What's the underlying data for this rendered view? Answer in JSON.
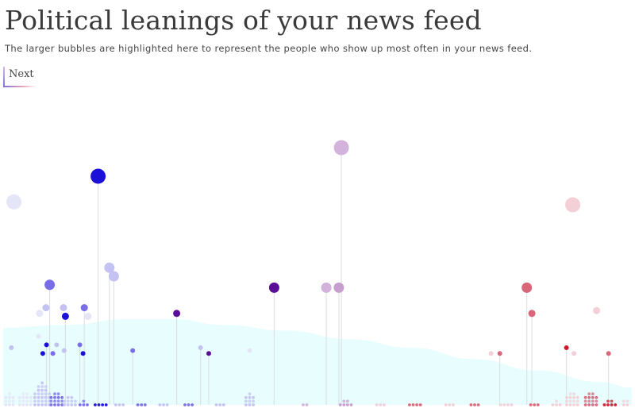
{
  "header": {
    "title": "Political leanings of your news feed",
    "subtitle": "The larger bubbles are highlighted here to represent the people who show up most often in your news feed.",
    "next_label": "Next"
  },
  "colors": {
    "strong_left": "#1a10d8",
    "left": "#7a6ee8",
    "light_left": "#c4c2f2",
    "very_light_left": "#e4e6f8",
    "purple": "#5a0d96",
    "light_purple": "#d3b3db",
    "mid_purple": "#c79fcf",
    "pink": "#d9677a",
    "light_pink": "#f3cfd6",
    "red": "#cc1b2c",
    "stem": "#dcdde0",
    "baseline_area": "#e8fdfd"
  },
  "chart_data": {
    "type": "scatter",
    "title": "Political leanings of your news feed",
    "xlabel": "",
    "ylabel": "",
    "xlim": [
      0,
      100
    ],
    "ylim": [
      0,
      100
    ],
    "x_meaning": "political leaning (left = blue, right = red)",
    "y_meaning": "how often the person shows up in your news feed",
    "background_area": [
      {
        "x": 0,
        "y": 27
      },
      {
        "x": 10,
        "y": 28
      },
      {
        "x": 20,
        "y": 30
      },
      {
        "x": 27,
        "y": 30
      },
      {
        "x": 35,
        "y": 28
      },
      {
        "x": 45,
        "y": 26
      },
      {
        "x": 55,
        "y": 23
      },
      {
        "x": 65,
        "y": 20
      },
      {
        "x": 75,
        "y": 16
      },
      {
        "x": 85,
        "y": 12
      },
      {
        "x": 95,
        "y": 8
      },
      {
        "x": 100,
        "y": 6
      }
    ],
    "bubbles": [
      {
        "x": 1.7,
        "y": 71,
        "size": 3,
        "color": "very_light_left",
        "stem": false
      },
      {
        "x": 15.1,
        "y": 80,
        "size": 3,
        "color": "strong_left",
        "stem": true
      },
      {
        "x": 53.8,
        "y": 90,
        "size": 3,
        "color": "light_purple",
        "stem": true
      },
      {
        "x": 90.6,
        "y": 70,
        "size": 3,
        "color": "light_pink",
        "stem": false
      },
      {
        "x": 16.9,
        "y": 48,
        "size": 2,
        "color": "light_left",
        "stem": true
      },
      {
        "x": 17.6,
        "y": 45,
        "size": 2,
        "color": "light_left",
        "stem": true
      },
      {
        "x": 7.4,
        "y": 42,
        "size": 2,
        "color": "left",
        "stem": true
      },
      {
        "x": 43.1,
        "y": 41,
        "size": 2,
        "color": "purple",
        "stem": true
      },
      {
        "x": 51.4,
        "y": 41,
        "size": 2,
        "color": "light_purple",
        "stem": true
      },
      {
        "x": 53.4,
        "y": 41,
        "size": 2,
        "color": "mid_purple",
        "stem": true
      },
      {
        "x": 83.3,
        "y": 41,
        "size": 2,
        "color": "pink",
        "stem": true
      },
      {
        "x": 6.8,
        "y": 34,
        "size": 1,
        "color": "light_left",
        "stem": false
      },
      {
        "x": 9.6,
        "y": 34,
        "size": 1,
        "color": "light_left",
        "stem": false
      },
      {
        "x": 12.9,
        "y": 34,
        "size": 1,
        "color": "left",
        "stem": true
      },
      {
        "x": 5.8,
        "y": 32,
        "size": 1,
        "color": "very_light_left",
        "stem": false
      },
      {
        "x": 9.9,
        "y": 31,
        "size": 1,
        "color": "strong_left",
        "stem": true
      },
      {
        "x": 13.5,
        "y": 31,
        "size": 1,
        "color": "very_light_left",
        "stem": false
      },
      {
        "x": 27.6,
        "y": 32,
        "size": 1,
        "color": "purple",
        "stem": true
      },
      {
        "x": 84.1,
        "y": 32,
        "size": 1,
        "color": "pink",
        "stem": true
      },
      {
        "x": 94.4,
        "y": 33,
        "size": 1,
        "color": "light_pink",
        "stem": false
      },
      {
        "x": 1.3,
        "y": 20,
        "size": 0,
        "color": "light_left",
        "stem": false
      },
      {
        "x": 5.6,
        "y": 24,
        "size": 0,
        "color": "very_light_left",
        "stem": false
      },
      {
        "x": 6.9,
        "y": 21,
        "size": 0,
        "color": "strong_left",
        "stem": true
      },
      {
        "x": 8.5,
        "y": 21,
        "size": 0,
        "color": "light_left",
        "stem": false
      },
      {
        "x": 6.3,
        "y": 18,
        "size": 0,
        "color": "strong_left",
        "stem": false
      },
      {
        "x": 7.9,
        "y": 18,
        "size": 0,
        "color": "left",
        "stem": false
      },
      {
        "x": 9.7,
        "y": 19,
        "size": 0,
        "color": "light_left",
        "stem": false
      },
      {
        "x": 12.2,
        "y": 21,
        "size": 0,
        "color": "left",
        "stem": true
      },
      {
        "x": 12.7,
        "y": 18,
        "size": 0,
        "color": "strong_left",
        "stem": false
      },
      {
        "x": 20.6,
        "y": 19,
        "size": 0,
        "color": "left",
        "stem": true
      },
      {
        "x": 31.4,
        "y": 20,
        "size": 0,
        "color": "light_left",
        "stem": true
      },
      {
        "x": 32.7,
        "y": 18,
        "size": 0,
        "color": "purple",
        "stem": true
      },
      {
        "x": 39.2,
        "y": 19,
        "size": 0,
        "color": "very_light_left",
        "stem": false
      },
      {
        "x": 77.6,
        "y": 18,
        "size": 0,
        "color": "light_pink",
        "stem": false
      },
      {
        "x": 79.0,
        "y": 18,
        "size": 0,
        "color": "pink",
        "stem": true
      },
      {
        "x": 89.6,
        "y": 20,
        "size": 0,
        "color": "red",
        "stem": true
      },
      {
        "x": 90.8,
        "y": 18,
        "size": 0,
        "color": "light_pink",
        "stem": false
      },
      {
        "x": 96.3,
        "y": 18,
        "size": 0,
        "color": "pink",
        "stem": true
      }
    ],
    "dot_clusters": [
      {
        "x": 1.0,
        "color": "very_light_left",
        "columns": 3,
        "height": 4
      },
      {
        "x": 3.5,
        "color": "very_light_left",
        "columns": 4,
        "height": 5
      },
      {
        "x": 6.2,
        "color": "light_left",
        "columns": 5,
        "height": 7
      },
      {
        "x": 8.5,
        "color": "left",
        "columns": 4,
        "height": 4
      },
      {
        "x": 10.6,
        "color": "light_left",
        "columns": 4,
        "height": 3
      },
      {
        "x": 12.8,
        "color": "left",
        "columns": 3,
        "height": 2
      },
      {
        "x": 15.5,
        "color": "strong_left",
        "columns": 4,
        "height": 1
      },
      {
        "x": 18.5,
        "color": "light_left",
        "columns": 3,
        "height": 1
      },
      {
        "x": 22.0,
        "color": "left",
        "columns": 3,
        "height": 1
      },
      {
        "x": 25.5,
        "color": "light_left",
        "columns": 3,
        "height": 1
      },
      {
        "x": 29.5,
        "color": "left",
        "columns": 3,
        "height": 1
      },
      {
        "x": 34.5,
        "color": "light_left",
        "columns": 3,
        "height": 1
      },
      {
        "x": 39.2,
        "color": "light_left",
        "columns": 3,
        "height": 4
      },
      {
        "x": 48.0,
        "color": "light_purple",
        "columns": 2,
        "height": 1
      },
      {
        "x": 54.5,
        "color": "mid_purple",
        "columns": 4,
        "height": 2
      },
      {
        "x": 60.0,
        "color": "light_pink",
        "columns": 3,
        "height": 1
      },
      {
        "x": 65.5,
        "color": "pink",
        "columns": 4,
        "height": 1
      },
      {
        "x": 71.0,
        "color": "light_pink",
        "columns": 3,
        "height": 1
      },
      {
        "x": 75.0,
        "color": "pink",
        "columns": 3,
        "height": 1
      },
      {
        "x": 80.0,
        "color": "light_pink",
        "columns": 4,
        "height": 1
      },
      {
        "x": 84.5,
        "color": "pink",
        "columns": 3,
        "height": 1
      },
      {
        "x": 88.0,
        "color": "light_pink",
        "columns": 3,
        "height": 2
      },
      {
        "x": 90.5,
        "color": "light_pink",
        "columns": 4,
        "height": 5
      },
      {
        "x": 93.5,
        "color": "pink",
        "columns": 4,
        "height": 4
      },
      {
        "x": 96.5,
        "color": "red",
        "columns": 4,
        "height": 2
      },
      {
        "x": 99.0,
        "color": "light_pink",
        "columns": 2,
        "height": 3
      }
    ]
  }
}
